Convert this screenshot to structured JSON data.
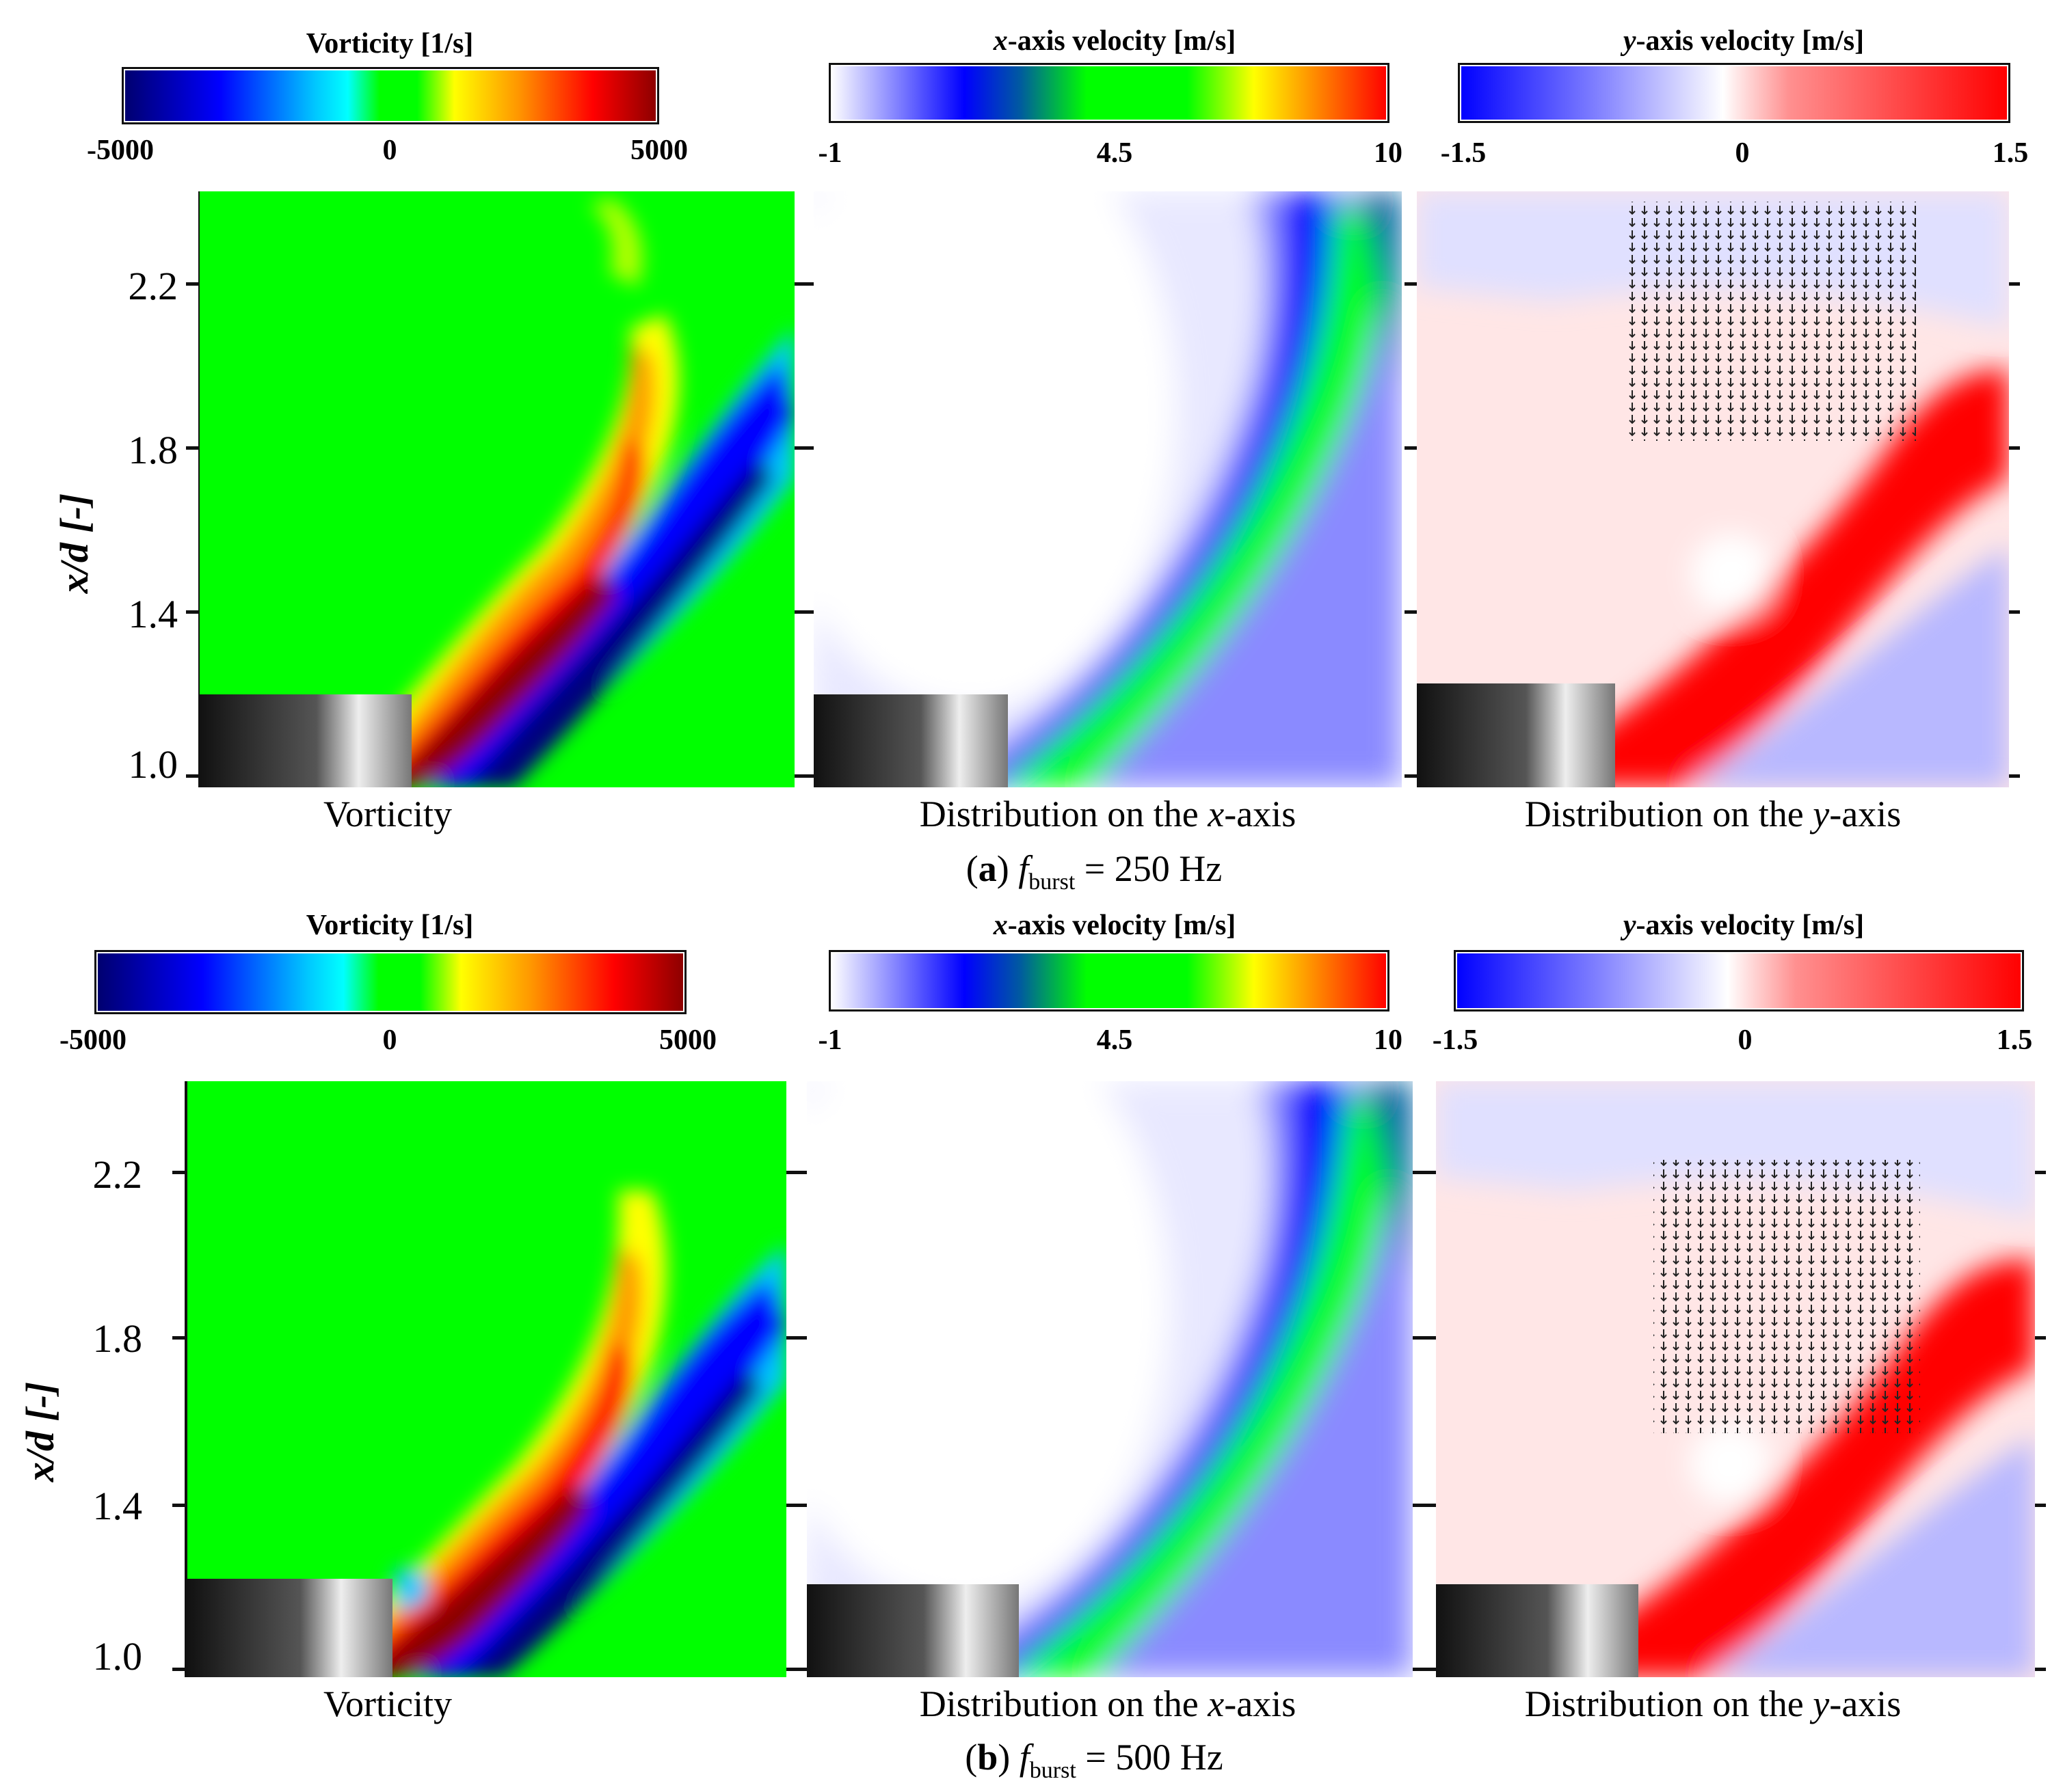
{
  "figure": {
    "rows": [
      {
        "id": "a",
        "caption_letter": "a",
        "caption_prefix": "(",
        "caption_suffix": ")",
        "caption_f": "f",
        "caption_sub": "burst",
        "caption_value": " = 250 Hz",
        "colorbars": [
          {
            "title": "Vorticity [1/s]",
            "min": "-5000",
            "mid": "0",
            "max": "5000"
          },
          {
            "title_italic": "x",
            "title_rest": "-axis velocity [m/s]",
            "min": "-1",
            "mid": "4.5",
            "max": "10"
          },
          {
            "title_italic": "y",
            "title_rest": "-axis velocity [m/s]",
            "min": "-1.5",
            "mid": "0",
            "max": "1.5"
          }
        ],
        "panel_titles": [
          {
            "text": "Vorticity"
          },
          {
            "pre": "Distribution on the ",
            "italic": "x",
            "post": "-axis"
          },
          {
            "pre": "Distribution on the ",
            "italic": "y",
            "post": "-axis"
          }
        ],
        "ylabel": "x/d [-]",
        "yticks": [
          "2.2",
          "1.8",
          "1.4",
          "1.0"
        ]
      },
      {
        "id": "b",
        "caption_letter": "b",
        "caption_prefix": "(",
        "caption_suffix": ")",
        "caption_f": "f",
        "caption_sub": "burst",
        "caption_value": " = 500 Hz",
        "colorbars": [
          {
            "title": "Vorticity [1/s]",
            "min": "-5000",
            "mid": "0",
            "max": "5000"
          },
          {
            "title_italic": "x",
            "title_rest": "-axis velocity [m/s]",
            "min": "-1",
            "mid": "4.5",
            "max": "10"
          },
          {
            "title_italic": "y",
            "title_rest": "-axis velocity [m/s]",
            "min": "-1.5",
            "mid": "0",
            "max": "1.5"
          }
        ],
        "panel_titles": [
          {
            "text": "Vorticity"
          },
          {
            "pre": "Distribution on the ",
            "italic": "x",
            "post": "-axis"
          },
          {
            "pre": "Distribution on the ",
            "italic": "y",
            "post": "-axis"
          }
        ],
        "ylabel": "x/d [-]",
        "yticks": [
          "2.2",
          "1.8",
          "1.4",
          "1.0"
        ]
      }
    ],
    "colors": {
      "vorticity_map": [
        "#00007f",
        "#0000ff",
        "#00c8ff",
        "#00ffff",
        "#00ff00",
        "#00ff00",
        "#ffff00",
        "#ff8c00",
        "#ff0000",
        "#8b0000"
      ],
      "xvel_map": [
        "#ffffff",
        "#8080ff",
        "#0000ff",
        "#0060a0",
        "#00ff00",
        "#00ff00",
        "#ffff00",
        "#ff8000",
        "#ff0000"
      ],
      "yvel_map": [
        "#0000ff",
        "#8080ff",
        "#ffffff",
        "#ff8080",
        "#ff0000"
      ]
    }
  }
}
